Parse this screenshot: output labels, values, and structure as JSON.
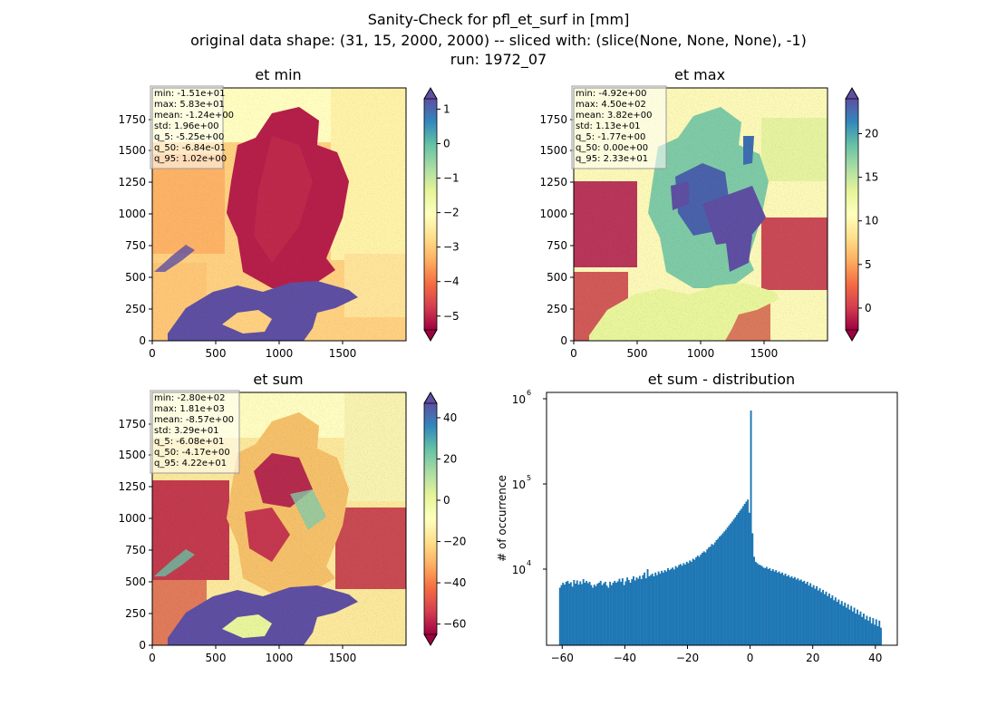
{
  "figure": {
    "title_lines": [
      "Sanity-Check for pfl_et_surf in [mm]",
      "original data shape: (31, 15, 2000, 2000) -- sliced with: (slice(None, None, None), -1)",
      "run: 1972_07"
    ]
  },
  "panels": [
    {
      "title": "et min",
      "x_ticks": [
        "0",
        "500",
        "1000",
        "1500"
      ],
      "y_ticks": [
        "0",
        "250",
        "500",
        "750",
        "1000",
        "1250",
        "1500",
        "1750"
      ],
      "stats": [
        "min: -1.51e+01",
        "max: 5.83e+01",
        "mean: -1.24e+00",
        "std: 1.96e+00",
        "q_5: -5.25e+00",
        "q_50: -6.84e-01",
        "q_95: 1.02e+00"
      ],
      "colorbar": {
        "vmin": -5.4,
        "vmax": 1.3,
        "ticks": [
          1,
          0,
          -1,
          -2,
          -3,
          -4,
          -5
        ],
        "tick_labels": [
          "1",
          "0",
          "−1",
          "−2",
          "−3",
          "−4",
          "−5"
        ]
      }
    },
    {
      "title": "et max",
      "x_ticks": [
        "0",
        "500",
        "1000",
        "1500"
      ],
      "y_ticks": [
        "0",
        "250",
        "500",
        "750",
        "1000",
        "1250",
        "1500",
        "1750"
      ],
      "stats": [
        "min: -4.92e+00",
        "max: 4.50e+02",
        "mean: 3.82e+00",
        "std: 1.13e+01",
        "q_5: -1.77e+00",
        "q_50: 0.00e+00",
        "q_95: 2.33e+01"
      ],
      "colorbar": {
        "vmin": -2.5,
        "vmax": 24,
        "ticks": [
          20,
          15,
          10,
          5,
          0
        ],
        "tick_labels": [
          "20",
          "15",
          "10",
          "5",
          "0"
        ]
      }
    },
    {
      "title": "et sum",
      "x_ticks": [
        "0",
        "500",
        "1000",
        "1500"
      ],
      "y_ticks": [
        "0",
        "250",
        "500",
        "750",
        "1000",
        "1250",
        "1500",
        "1750"
      ],
      "stats": [
        "min: -2.80e+02",
        "max: 1.81e+03",
        "mean: -8.57e+00",
        "std: 3.29e+01",
        "q_5: -6.08e+01",
        "q_50: -4.17e+00",
        "q_95: 4.22e+01"
      ],
      "colorbar": {
        "vmin": -65,
        "vmax": 47,
        "ticks": [
          40,
          20,
          0,
          -20,
          -40,
          -60
        ],
        "tick_labels": [
          "40",
          "20",
          "0",
          "−20",
          "−40",
          "−60"
        ]
      }
    }
  ],
  "histogram": {
    "title": "et sum - distribution",
    "ylabel": "# of occurrence",
    "x_ticks": [
      -60,
      -40,
      -20,
      0,
      20,
      40
    ],
    "x_tick_labels": [
      "−60",
      "−40",
      "−20",
      "0",
      "20",
      "40"
    ],
    "y_tick_labels": [
      "10",
      "10",
      "10"
    ],
    "y_tick_exponents": [
      "4",
      "5",
      "6"
    ],
    "bar_color": "#1f77b4"
  },
  "colormap": {
    "name": "Spectral",
    "stops": [
      "#9e0142",
      "#d53e4f",
      "#f46d43",
      "#fdae61",
      "#fee08b",
      "#ffffbf",
      "#e6f598",
      "#abdda4",
      "#66c2a5",
      "#3288bd",
      "#5e4fa2"
    ]
  },
  "chart_data": [
    {
      "type": "heatmap",
      "title": "et min",
      "xlim": [
        0,
        2000
      ],
      "ylim": [
        0,
        2000
      ],
      "color_range": [
        -5.4,
        1.3
      ],
      "colormap": "Spectral"
    },
    {
      "type": "heatmap",
      "title": "et max",
      "xlim": [
        0,
        2000
      ],
      "ylim": [
        0,
        2000
      ],
      "color_range": [
        -2.5,
        24
      ],
      "colormap": "Spectral"
    },
    {
      "type": "heatmap",
      "title": "et sum",
      "xlim": [
        0,
        2000
      ],
      "ylim": [
        0,
        2000
      ],
      "color_range": [
        -65,
        47
      ],
      "colormap": "Spectral"
    },
    {
      "type": "bar",
      "title": "et sum - distribution",
      "ylabel": "# of occurrence",
      "yscale": "log",
      "xlim": [
        -65,
        47
      ],
      "ylim": [
        1500,
        1300000
      ],
      "bins": [
        [
          -61,
          7000
        ],
        [
          -60.5,
          7500
        ],
        [
          -60,
          8000
        ],
        [
          -59.5,
          7600
        ],
        [
          -59,
          8200
        ],
        [
          -58.5,
          8400
        ],
        [
          -58,
          7800
        ],
        [
          -57.5,
          8100
        ],
        [
          -57,
          7200
        ],
        [
          -56.5,
          8600
        ],
        [
          -56,
          7800
        ],
        [
          -55.5,
          8500
        ],
        [
          -55,
          7600
        ],
        [
          -54.5,
          8300
        ],
        [
          -54,
          7700
        ],
        [
          -53.5,
          8800
        ],
        [
          -53,
          8000
        ],
        [
          -52.5,
          8400
        ],
        [
          -52,
          7900
        ],
        [
          -51.5,
          8200
        ],
        [
          -51,
          7500
        ],
        [
          -50.5,
          7000
        ],
        [
          -50,
          7600
        ],
        [
          -49.5,
          7300
        ],
        [
          -49,
          7800
        ],
        [
          -48.5,
          8000
        ],
        [
          -48,
          8400
        ],
        [
          -47.5,
          7500
        ],
        [
          -47,
          7900
        ],
        [
          -46.5,
          8200
        ],
        [
          -46,
          7400
        ],
        [
          -45.5,
          7000
        ],
        [
          -45,
          8200
        ],
        [
          -44.5,
          7500
        ],
        [
          -44,
          8000
        ],
        [
          -43.5,
          8400
        ],
        [
          -43,
          8000
        ],
        [
          -42.5,
          8300
        ],
        [
          -42,
          8900
        ],
        [
          -41.5,
          8200
        ],
        [
          -41,
          9000
        ],
        [
          -40.5,
          7500
        ],
        [
          -40,
          8300
        ],
        [
          -39.5,
          9200
        ],
        [
          -39,
          8600
        ],
        [
          -38.5,
          8000
        ],
        [
          -38,
          8800
        ],
        [
          -37.5,
          9500
        ],
        [
          -37,
          8500
        ],
        [
          -36.5,
          9200
        ],
        [
          -36,
          8900
        ],
        [
          -35.5,
          9600
        ],
        [
          -35,
          8800
        ],
        [
          -34.5,
          9800
        ],
        [
          -34,
          10500
        ],
        [
          -33.5,
          9000
        ],
        [
          -33,
          11500
        ],
        [
          -32.5,
          9500
        ],
        [
          -32,
          9800
        ],
        [
          -31.5,
          10200
        ],
        [
          -31,
          9500
        ],
        [
          -30.5,
          10500
        ],
        [
          -30,
          9800
        ],
        [
          -29.5,
          10800
        ],
        [
          -29,
          10200
        ],
        [
          -28.5,
          11000
        ],
        [
          -28,
          10500
        ],
        [
          -27.5,
          11200
        ],
        [
          -27,
          10800
        ],
        [
          -26.5,
          11800
        ],
        [
          -26,
          11200
        ],
        [
          -25.5,
          11600
        ],
        [
          -25,
          12000
        ],
        [
          -24.5,
          11400
        ],
        [
          -24,
          12500
        ],
        [
          -23.5,
          12000
        ],
        [
          -23,
          12800
        ],
        [
          -22.5,
          13200
        ],
        [
          -22,
          12600
        ],
        [
          -21.5,
          13500
        ],
        [
          -21,
          13000
        ],
        [
          -20.5,
          14000
        ],
        [
          -20,
          13500
        ],
        [
          -19.5,
          14500
        ],
        [
          -19,
          14000
        ],
        [
          -18.5,
          15200
        ],
        [
          -18,
          14800
        ],
        [
          -17.5,
          15800
        ],
        [
          -17,
          16500
        ],
        [
          -16.5,
          16000
        ],
        [
          -16,
          17000
        ],
        [
          -15.5,
          17800
        ],
        [
          -15,
          18500
        ],
        [
          -14.5,
          18000
        ],
        [
          -14,
          19500
        ],
        [
          -13.5,
          20500
        ],
        [
          -13,
          21000
        ],
        [
          -12.5,
          22500
        ],
        [
          -12,
          22000
        ],
        [
          -11.5,
          23500
        ],
        [
          -11,
          25000
        ],
        [
          -10.5,
          26000
        ],
        [
          -10,
          27500
        ],
        [
          -9.5,
          28500
        ],
        [
          -9,
          30000
        ],
        [
          -8.5,
          31500
        ],
        [
          -8,
          33000
        ],
        [
          -7.5,
          35000
        ],
        [
          -7,
          37000
        ],
        [
          -6.5,
          39000
        ],
        [
          -6,
          41000
        ],
        [
          -5.5,
          43500
        ],
        [
          -5,
          46000
        ],
        [
          -4.5,
          49000
        ],
        [
          -4,
          52000
        ],
        [
          -3.5,
          55000
        ],
        [
          -3,
          58000
        ],
        [
          -2.5,
          62000
        ],
        [
          -2,
          66000
        ],
        [
          -1.5,
          70000
        ],
        [
          -1,
          74000
        ],
        [
          -0.5,
          52000
        ],
        [
          0,
          800000
        ],
        [
          0.5,
          30000
        ],
        [
          1,
          16000
        ],
        [
          1.5,
          14000
        ],
        [
          2,
          13500
        ],
        [
          2.5,
          13000
        ],
        [
          3,
          12800
        ],
        [
          3.5,
          12500
        ],
        [
          4,
          12000
        ],
        [
          4.5,
          11800
        ],
        [
          5,
          12200
        ],
        [
          5.5,
          11500
        ],
        [
          6,
          11800
        ],
        [
          6.5,
          11000
        ],
        [
          7,
          11500
        ],
        [
          7.5,
          10800
        ],
        [
          8,
          11200
        ],
        [
          8.5,
          10500
        ],
        [
          9,
          10800
        ],
        [
          9.5,
          10200
        ],
        [
          10,
          10500
        ],
        [
          10.5,
          9800
        ],
        [
          11,
          10200
        ],
        [
          11.5,
          9500
        ],
        [
          12,
          9800
        ],
        [
          12.5,
          9200
        ],
        [
          13,
          9500
        ],
        [
          13.5,
          9000
        ],
        [
          14,
          9300
        ],
        [
          14.5,
          8700
        ],
        [
          15,
          9000
        ],
        [
          15.5,
          8500
        ],
        [
          16,
          8700
        ],
        [
          16.5,
          8200
        ],
        [
          17,
          8400
        ],
        [
          17.5,
          7800
        ],
        [
          18,
          8200
        ],
        [
          18.5,
          7400
        ],
        [
          19,
          7900
        ],
        [
          19.5,
          7100
        ],
        [
          20,
          7500
        ],
        [
          20.5,
          6800
        ],
        [
          21,
          7300
        ],
        [
          21.5,
          6500
        ],
        [
          22,
          6900
        ],
        [
          22.5,
          6200
        ],
        [
          23,
          6600
        ],
        [
          23.5,
          5900
        ],
        [
          24,
          6300
        ],
        [
          24.5,
          5600
        ],
        [
          25,
          6000
        ],
        [
          25.5,
          5300
        ],
        [
          26,
          5700
        ],
        [
          26.5,
          5000
        ],
        [
          27,
          5400
        ],
        [
          27.5,
          4800
        ],
        [
          28,
          5100
        ],
        [
          28.5,
          4500
        ],
        [
          29,
          4900
        ],
        [
          29.5,
          4300
        ],
        [
          30,
          4700
        ],
        [
          30.5,
          4100
        ],
        [
          31,
          4500
        ],
        [
          31.5,
          3900
        ],
        [
          32,
          4300
        ],
        [
          32.5,
          3700
        ],
        [
          33,
          4100
        ],
        [
          33.5,
          3500
        ],
        [
          34,
          3900
        ],
        [
          34.5,
          3400
        ],
        [
          35,
          3700
        ],
        [
          35.5,
          3200
        ],
        [
          36,
          3500
        ],
        [
          36.5,
          3000
        ],
        [
          37,
          3300
        ],
        [
          37.5,
          2900
        ],
        [
          38,
          3200
        ],
        [
          38.5,
          2700
        ],
        [
          39,
          3100
        ],
        [
          39.5,
          2600
        ],
        [
          40,
          3000
        ],
        [
          40.5,
          2500
        ],
        [
          41,
          2900
        ],
        [
          41.5,
          2400
        ]
      ]
    }
  ]
}
